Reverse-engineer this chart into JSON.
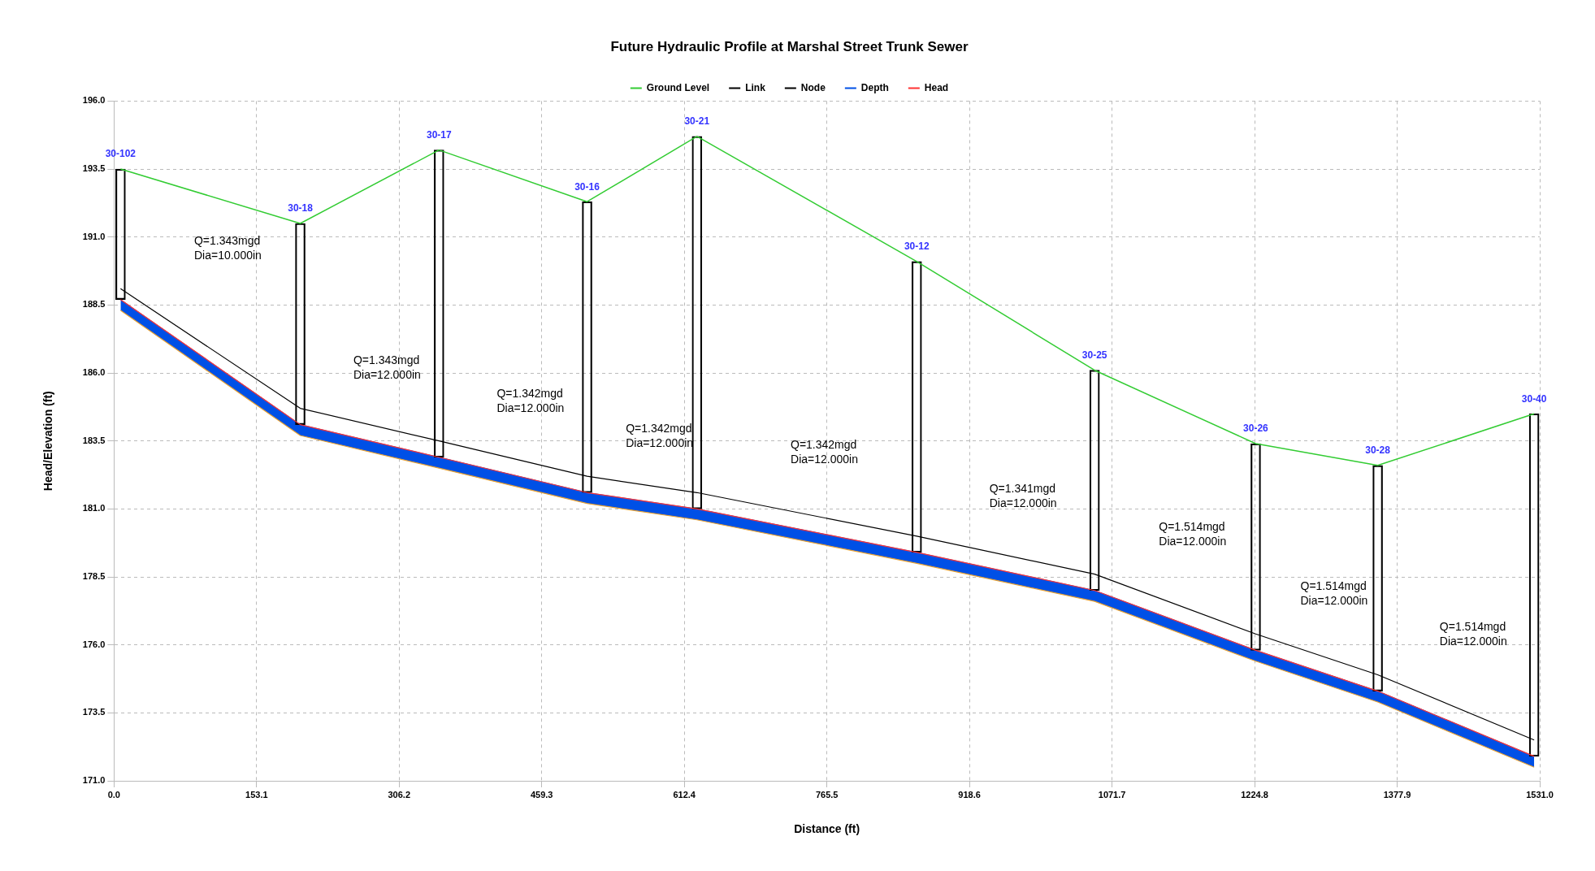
{
  "chart_data": {
    "type": "line",
    "title": "Future Hydraulic Profile at Marshal Street Trunk Sewer",
    "xlabel": "Distance (ft)",
    "ylabel": "Head/Elevation (ft)",
    "x": [
      7,
      200,
      349,
      508,
      626,
      862,
      1053,
      1226,
      1357,
      1525
    ],
    "series": [
      {
        "name": "Ground Level",
        "color": "#33cc33",
        "values": [
          193.5,
          191.5,
          194.2,
          192.3,
          194.7,
          190.1,
          186.1,
          183.4,
          182.6,
          184.5
        ]
      },
      {
        "name": "Link",
        "color": "#000000",
        "values": [
          189.1,
          184.7,
          183.5,
          182.2,
          181.6,
          180.0,
          178.6,
          176.4,
          174.9,
          172.5
        ]
      },
      {
        "name": "Node",
        "type": "bar",
        "color": "#000000",
        "base": [
          188.7,
          184.1,
          182.9,
          181.6,
          181.0,
          179.4,
          178.0,
          175.8,
          174.3,
          171.9
        ],
        "values": [
          4.8,
          7.4,
          11.3,
          10.7,
          13.7,
          10.7,
          8.1,
          7.6,
          8.3,
          12.6
        ]
      },
      {
        "color": "#e8a030",
        "values": [
          188.3,
          183.7,
          182.5,
          181.2,
          180.6,
          179.0,
          177.6,
          175.4,
          173.9,
          171.5
        ]
      },
      {
        "name": "Depth",
        "type": "area",
        "color": "#0050e6",
        "values": [
          188.7,
          184.1,
          182.9,
          181.6,
          181.0,
          179.4,
          178.0,
          175.8,
          174.3,
          171.9
        ]
      },
      {
        "name": "Head",
        "color": "#ff3333",
        "values": [
          188.7,
          184.1,
          182.9,
          181.6,
          181.0,
          179.4,
          178.0,
          175.8,
          174.3,
          171.9
        ]
      }
    ],
    "xlim": [
      0,
      1531
    ],
    "xticks": [
      {
        "value": 0,
        "label": "0.0"
      },
      {
        "value": 153.1,
        "label": "153.1"
      },
      {
        "value": 306.2,
        "label": "306.2"
      },
      {
        "value": 459.3,
        "label": "459.3"
      },
      {
        "value": 612.4,
        "label": "612.4"
      },
      {
        "value": 765.5,
        "label": "765.5"
      },
      {
        "value": 918.6,
        "label": "918.6"
      },
      {
        "value": 1071.7,
        "label": "1071.7"
      },
      {
        "value": 1224.8,
        "label": "1224.8"
      },
      {
        "value": 1377.9,
        "label": "1377.9"
      },
      {
        "value": 1531,
        "label": "1531.0"
      }
    ],
    "ylim": [
      171,
      196
    ],
    "yticks": [
      {
        "value": 171,
        "label": "171.0"
      },
      {
        "value": 173.5,
        "label": "173.5"
      },
      {
        "value": 176,
        "label": "176.0"
      },
      {
        "value": 178.5,
        "label": "178.5"
      },
      {
        "value": 181,
        "label": "181.0"
      },
      {
        "value": 183.5,
        "label": "183.5"
      },
      {
        "value": 186,
        "label": "186.0"
      },
      {
        "value": 188.5,
        "label": "188.5"
      },
      {
        "value": 191,
        "label": "191.0"
      },
      {
        "value": 193.5,
        "label": "193.5"
      },
      {
        "value": 196,
        "label": "196.0"
      }
    ],
    "grid": true,
    "legend": "top",
    "marker": "none",
    "line_style": "solid",
    "annotations": [
      {
        "text": "30-102",
        "x": 7,
        "y": 193.5
      },
      {
        "text": "30-18",
        "x": 200,
        "y": 191.5
      },
      {
        "text": "30-17",
        "x": 349,
        "y": 194.2
      },
      {
        "text": "30-16",
        "x": 508,
        "y": 192.3
      },
      {
        "text": "30-21",
        "x": 626,
        "y": 194.7
      },
      {
        "text": "30-12",
        "x": 862,
        "y": 190.1
      },
      {
        "text": "30-25",
        "x": 1053,
        "y": 186.1
      },
      {
        "text": "30-26",
        "x": 1226,
        "y": 183.4
      },
      {
        "text": "30-28",
        "x": 1357,
        "y": 182.6
      },
      {
        "text": "30-40",
        "x": 1525,
        "y": 184.5
      },
      "Q=1.343mgd\nDia=10.000in",
      "Q=1.343mgd\nDia=12.000in",
      "Q=1.342mgd\nDia=12.000in",
      "Q=1.342mgd\nDia=12.000in",
      "Q=1.342mgd\nDia=12.000in",
      "Q=1.341mgd\nDia=12.000in",
      "Q=1.514mgd\nDia=12.000in",
      "Q=1.514mgd\nDia=12.000in",
      "Q=1.514mgd\nDia=12.000in"
    ]
  }
}
